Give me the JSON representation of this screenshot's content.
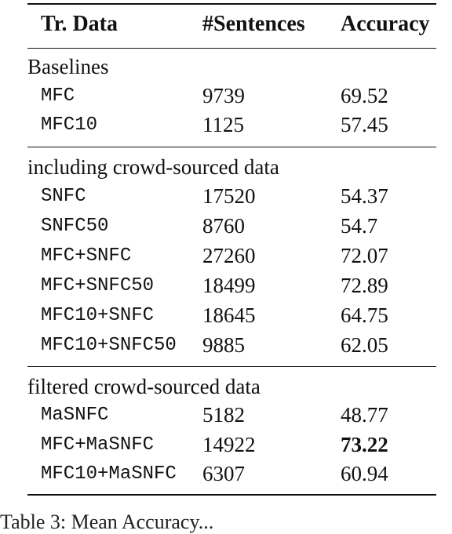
{
  "table": {
    "headers": [
      "Tr. Data",
      "#Sentences",
      "Accuracy"
    ],
    "sections": [
      {
        "title": "Baselines",
        "rows": [
          {
            "data": "MFC",
            "sentences": "9739",
            "accuracy": "69.52"
          },
          {
            "data": "MFC10",
            "sentences": "1125",
            "accuracy": "57.45"
          }
        ]
      },
      {
        "title": "including crowd-sourced data",
        "rows": [
          {
            "data": "SNFC",
            "sentences": "17520",
            "accuracy": "54.37"
          },
          {
            "data": "SNFC50",
            "sentences": "8760",
            "accuracy": "54.7"
          },
          {
            "data": "MFC+SNFC",
            "sentences": "27260",
            "accuracy": "72.07"
          },
          {
            "data": "MFC+SNFC50",
            "sentences": "18499",
            "accuracy": "72.89"
          },
          {
            "data": "MFC10+SNFC",
            "sentences": "18645",
            "accuracy": "64.75"
          },
          {
            "data": "MFC10+SNFC50",
            "sentences": "9885",
            "accuracy": "62.05"
          }
        ]
      },
      {
        "title": "filtered crowd-sourced data",
        "rows": [
          {
            "data": "MaSNFC",
            "sentences": "5182",
            "accuracy": "48.77"
          },
          {
            "data": "MFC+MaSNFC",
            "sentences": "14922",
            "accuracy": "73.22",
            "best": true
          },
          {
            "data": "MFC10+MaSNFC",
            "sentences": "6307",
            "accuracy": "60.94"
          }
        ]
      }
    ]
  },
  "caption_fragment": "Table 3: Mean Accuracy..."
}
